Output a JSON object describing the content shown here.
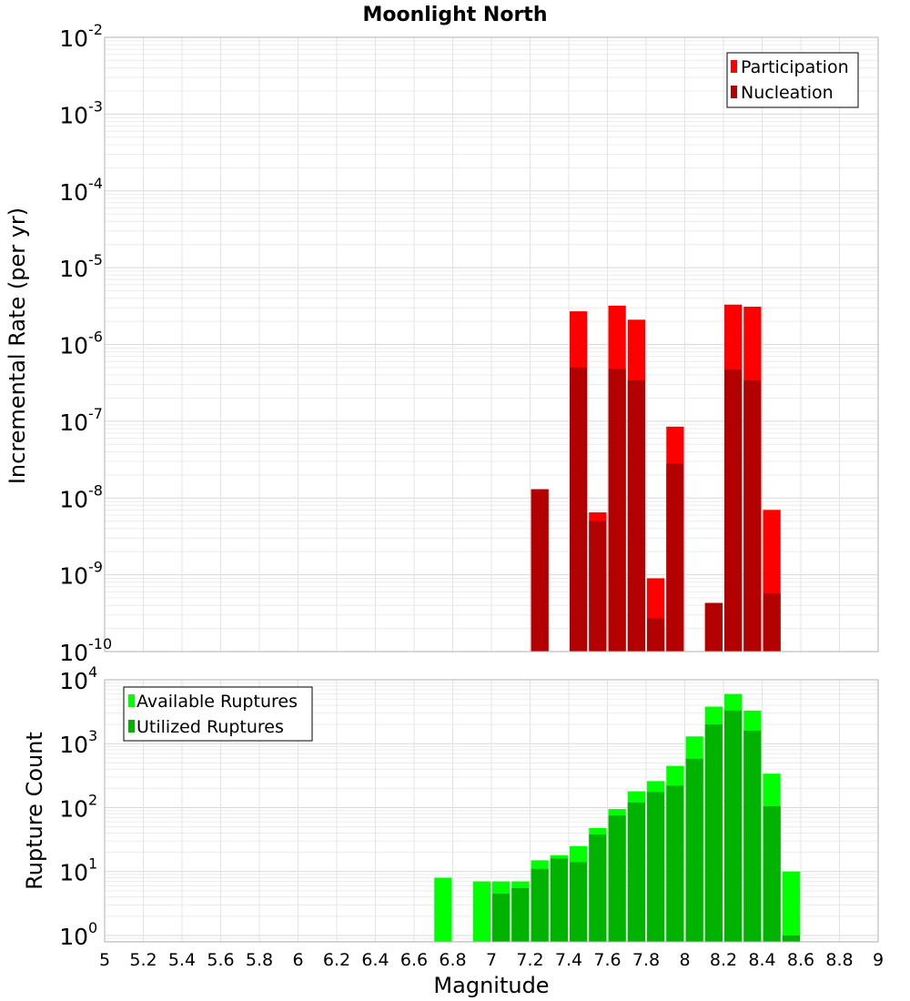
{
  "title": "Moonlight North",
  "chart_data": [
    {
      "type": "bar",
      "ylabel": "Incremental Rate (per yr)",
      "yscale": "log",
      "ylim_exp": [
        -10,
        -2
      ],
      "ytick_base": "10",
      "ytick_exps": [
        "-10",
        "-9",
        "-8",
        "-7",
        "-6",
        "-5",
        "-4",
        "-3",
        "-2"
      ],
      "xlim": [
        5,
        9
      ],
      "bin_width": 0.1,
      "grid": true,
      "legend_position": "top-right",
      "colors": {
        "Participation": "#ff0000",
        "Nucleation": "#b30000"
      },
      "series": [
        {
          "name": "Participation",
          "x": [
            7.25,
            7.45,
            7.55,
            7.65,
            7.75,
            7.85,
            7.95,
            8.15,
            8.25,
            8.35,
            8.45
          ],
          "values": [
            1.3e-08,
            2.7e-06,
            6.5e-09,
            3.2e-06,
            2.1e-06,
            9e-10,
            8.5e-08,
            4.3e-10,
            3.3e-06,
            3.1e-06,
            7e-09
          ]
        },
        {
          "name": "Nucleation",
          "x": [
            7.25,
            7.45,
            7.55,
            7.65,
            7.75,
            7.85,
            7.95,
            8.15,
            8.25,
            8.35,
            8.45
          ],
          "values": [
            1.3e-08,
            5e-07,
            5e-09,
            4.8e-07,
            3.4e-07,
            2.7e-10,
            2.8e-08,
            4.3e-10,
            4.7e-07,
            3.4e-07,
            5.7e-10
          ]
        }
      ]
    },
    {
      "type": "bar",
      "ylabel": "Rupture Count",
      "xlabel": "Magnitude",
      "yscale": "log",
      "ylim_exp": [
        -0.1,
        4
      ],
      "ytick_base": "10",
      "ytick_exps": [
        "0",
        "1",
        "2",
        "3",
        "4"
      ],
      "xlim": [
        5,
        9
      ],
      "bin_width": 0.1,
      "xticks": [
        "5",
        "5.2",
        "5.4",
        "5.6",
        "5.8",
        "6",
        "6.2",
        "6.4",
        "6.6",
        "6.8",
        "7",
        "7.2",
        "7.4",
        "7.6",
        "7.8",
        "8",
        "8.2",
        "8.4",
        "8.6",
        "8.8",
        "9"
      ],
      "grid": true,
      "legend_position": "top-left",
      "colors": {
        "Available Ruptures": "#00ff00",
        "Utilized Ruptures": "#00b300"
      },
      "series": [
        {
          "name": "Available Ruptures",
          "x": [
            6.75,
            6.95,
            7.05,
            7.15,
            7.25,
            7.35,
            7.45,
            7.55,
            7.65,
            7.75,
            7.85,
            7.95,
            8.05,
            8.15,
            8.25,
            8.35,
            8.45,
            8.55
          ],
          "values": [
            8,
            7,
            7,
            7,
            15,
            18,
            25,
            48,
            95,
            180,
            260,
            450,
            1300,
            3800,
            6000,
            3300,
            340,
            10
          ]
        },
        {
          "name": "Utilized Ruptures",
          "x": [
            7.05,
            7.15,
            7.25,
            7.35,
            7.45,
            7.55,
            7.65,
            7.75,
            7.85,
            7.95,
            8.05,
            8.15,
            8.25,
            8.35,
            8.45,
            8.55
          ],
          "values": [
            4.5,
            5.5,
            11,
            16,
            14,
            38,
            75,
            120,
            175,
            220,
            580,
            2000,
            3300,
            1600,
            105,
            1
          ]
        }
      ]
    }
  ]
}
